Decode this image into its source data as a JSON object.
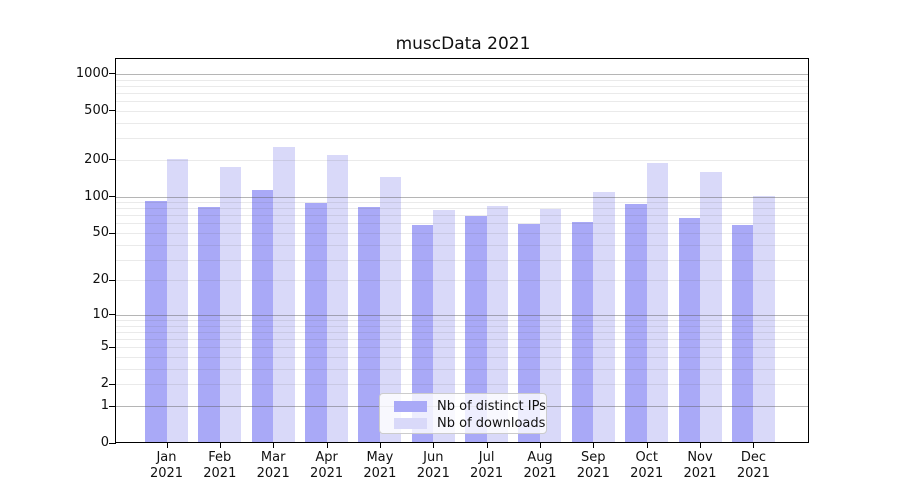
{
  "title": "muscData 2021",
  "chart_data": {
    "type": "bar",
    "title": "muscData 2021",
    "categories": [
      "Jan",
      "Feb",
      "Mar",
      "Apr",
      "May",
      "Jun",
      "Jul",
      "Aug",
      "Sep",
      "Oct",
      "Nov",
      "Dec"
    ],
    "year_label": "2021",
    "series": [
      {
        "name": "Nb of distinct IPs",
        "color": "#a9a9f7",
        "values": [
          90,
          80,
          111,
          87,
          80,
          57,
          68,
          58,
          60,
          85,
          65,
          57
        ]
      },
      {
        "name": "Nb of downloads",
        "color": "#d9d9f9",
        "values": [
          199,
          171,
          250,
          213,
          142,
          76,
          82,
          77,
          107,
          184,
          156,
          100
        ]
      }
    ],
    "xlabel": "",
    "ylabel": "",
    "yscale": "log1p",
    "ylim": [
      0,
      1320
    ],
    "yticks": [
      0,
      1,
      2,
      5,
      10,
      20,
      50,
      100,
      200,
      500,
      1000
    ],
    "major_gridlines": [
      1,
      10,
      100,
      1000
    ],
    "minor_gridline_multiples": [
      2,
      3,
      4,
      5,
      6,
      7,
      8,
      9
    ],
    "minor_gridline_decades": [
      1,
      10,
      100
    ],
    "grid": true,
    "legend_position": "bottom-center",
    "colors": {
      "background": "#ffffff",
      "axis": "#000000",
      "text": "#111111",
      "grid_major": "#b3b3b3",
      "grid_minor": "#e8e8e8"
    }
  }
}
